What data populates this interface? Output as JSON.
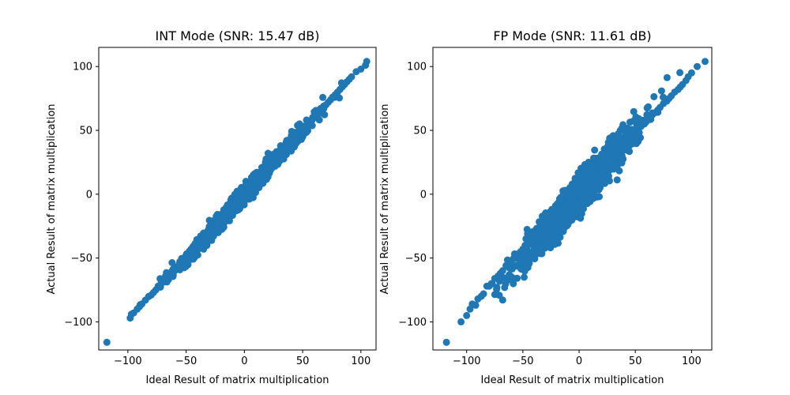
{
  "chart_data": [
    {
      "type": "scatter",
      "title": "INT Mode (SNR: 15.47 dB)",
      "xlabel": "Ideal Result of matrix multiplication",
      "ylabel": "Actual Result of matrix multiplication",
      "xlim": [
        -125,
        113
      ],
      "ylim": [
        -122,
        115
      ],
      "xticks": [
        -100,
        -50,
        0,
        50,
        100
      ],
      "yticks": [
        -100,
        -50,
        0,
        50,
        100
      ],
      "xtick_labels": [
        "−100",
        "−50",
        "0",
        "50",
        "100"
      ],
      "ytick_labels": [
        "−100",
        "−50",
        "0",
        "50",
        "100"
      ],
      "grid": false,
      "marker_color": "#1f77b4",
      "series": [
        {
          "x": [
            -118,
            -98,
            -97,
            -95,
            -92,
            -90,
            -88,
            -85,
            -82,
            -80,
            -78,
            -76,
            -74,
            -72,
            -70,
            -68,
            -66,
            -64,
            -62,
            -60,
            -58,
            -56,
            -54,
            -52,
            -50,
            -48,
            -46,
            -44,
            -42,
            -40,
            -38,
            -36,
            -34,
            -32,
            -30,
            -28,
            -26,
            -24,
            -22,
            -20,
            -18,
            -16,
            -14,
            -12,
            -10,
            -8,
            -6,
            -4,
            -2,
            0,
            2,
            4,
            6,
            8,
            10,
            12,
            14,
            16,
            18,
            20,
            22,
            24,
            26,
            28,
            30,
            32,
            34,
            36,
            38,
            40,
            42,
            44,
            46,
            48,
            50,
            52,
            54,
            56,
            58,
            60,
            62,
            64,
            66,
            68,
            70,
            72,
            74,
            76,
            78,
            80,
            82,
            84,
            86,
            88,
            90,
            92,
            96,
            100,
            104,
            105
          ],
          "y": [
            -116,
            -97,
            -94,
            -93,
            -90,
            -88,
            -86,
            -83,
            -80,
            -79,
            -77,
            -75,
            -72,
            -71,
            -69,
            -66,
            -65,
            -63,
            -60,
            -59,
            -57,
            -55,
            -53,
            -51,
            -49,
            -47,
            -45,
            -43,
            -41,
            -39,
            -37,
            -35,
            -33,
            -31,
            -29,
            -27,
            -25,
            -23,
            -21,
            -19,
            -17,
            -15,
            -13,
            -11,
            -9,
            -7,
            -5,
            -3,
            -1,
            0,
            2,
            4,
            6,
            8,
            10,
            12,
            14,
            16,
            18,
            20,
            22,
            24,
            26,
            28,
            30,
            32,
            34,
            36,
            38,
            40,
            42,
            44,
            46,
            48,
            50,
            52,
            54,
            56,
            58,
            60,
            62,
            64,
            66,
            68,
            70,
            72,
            74,
            76,
            78,
            80,
            82,
            84,
            86,
            88,
            90,
            92,
            96,
            98,
            101,
            104
          ]
        }
      ]
    },
    {
      "type": "scatter",
      "title": "FP Mode (SNR: 11.61 dB)",
      "xlabel": "Ideal Result of matrix multiplication",
      "ylabel": "Actual Result of matrix multiplication",
      "xlim": [
        -130,
        118
      ],
      "ylim": [
        -122,
        115
      ],
      "xticks": [
        -100,
        -50,
        0,
        50,
        100
      ],
      "yticks": [
        -100,
        -50,
        0,
        50,
        100
      ],
      "xtick_labels": [
        "−100",
        "−50",
        "0",
        "50",
        "100"
      ],
      "ytick_labels": [
        "−100",
        "−50",
        "0",
        "50",
        "100"
      ],
      "grid": false,
      "marker_color": "#1f77b4",
      "series": [
        {
          "x": [
            -118,
            -105,
            -100,
            -97,
            -95,
            -92,
            -90,
            -87,
            -85,
            -82,
            -80,
            -78,
            -75,
            -72,
            -70,
            -68,
            -65,
            -62,
            -60,
            -58,
            -55,
            -52,
            -50,
            -48,
            -45,
            -42,
            -40,
            -38,
            -35,
            -32,
            -30,
            -28,
            -25,
            -22,
            -20,
            -18,
            -15,
            -12,
            -10,
            -8,
            -5,
            -2,
            0,
            2,
            5,
            8,
            10,
            12,
            15,
            18,
            20,
            22,
            25,
            28,
            30,
            32,
            35,
            38,
            40,
            42,
            45,
            48,
            50,
            52,
            55,
            58,
            60,
            62,
            65,
            68,
            70,
            72,
            75,
            78,
            80,
            82,
            85,
            88,
            90,
            92,
            95,
            97,
            100,
            105,
            112
          ],
          "y": [
            -116,
            -100,
            -95,
            -90,
            -86,
            -87,
            -82,
            -80,
            -78,
            -72,
            -72,
            -70,
            -66,
            -64,
            -62,
            -60,
            -56,
            -54,
            -52,
            -50,
            -47,
            -45,
            -43,
            -40,
            -38,
            -35,
            -33,
            -31,
            -28,
            -26,
            -24,
            -22,
            -19,
            -17,
            -15,
            -13,
            -10,
            -8,
            -6,
            -4,
            -1,
            1,
            3,
            5,
            8,
            10,
            12,
            14,
            17,
            19,
            21,
            23,
            26,
            28,
            30,
            32,
            35,
            37,
            39,
            41,
            44,
            46,
            48,
            50,
            53,
            55,
            57,
            59,
            62,
            64,
            66,
            68,
            71,
            73,
            75,
            77,
            80,
            82,
            84,
            86,
            89,
            92,
            95,
            100,
            104
          ]
        }
      ]
    }
  ]
}
